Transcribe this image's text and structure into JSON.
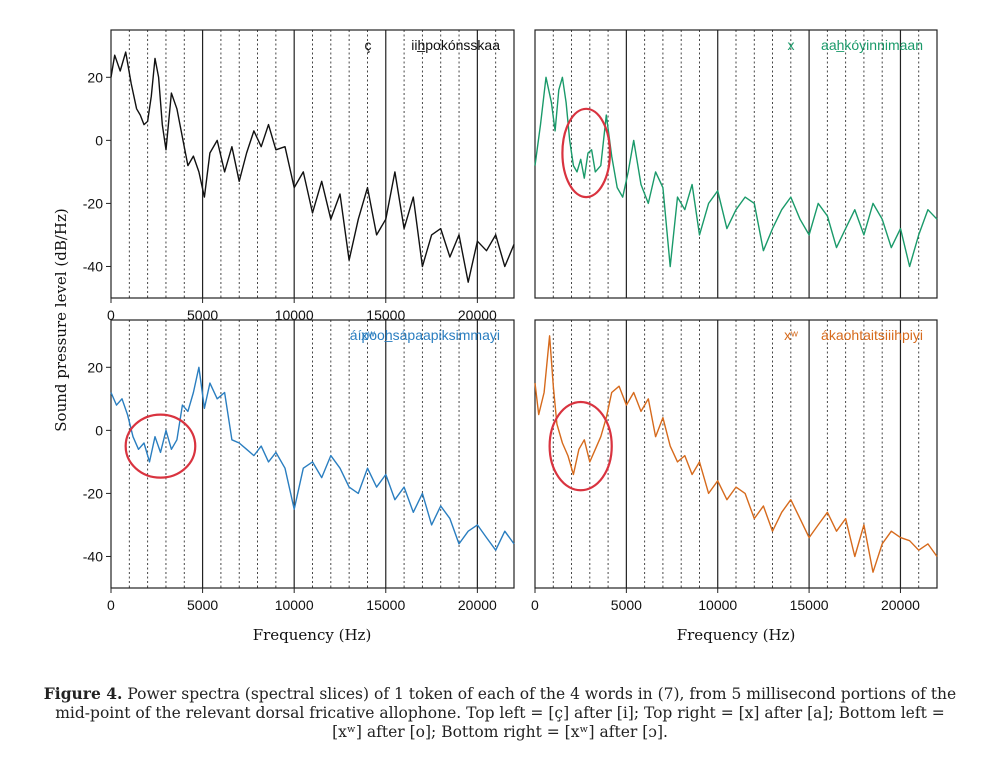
{
  "figure": {
    "ylabel": "Sound pressure level (dB/Hz)",
    "xlabel_left": "Frequency (Hz)",
    "xlabel_right": "Frequency (Hz)",
    "caption_label": "Figure 4.",
    "caption_text": "Power spectra (spectral slices) of 1 token of each of the 4 words in (7), from 5 millisecond portions of the mid-point of the relevant dorsal fricative allophone. Top left = [ç] after [i]; Top right = [x] after [a]; Bottom left = [xʷ] after [o]; Bottom right = [xʷ] after [ɔ]."
  },
  "chart_data": [
    {
      "type": "line",
      "panel": "top-left",
      "color": "#111111",
      "phone": "ç",
      "word": "iih̲pokónsskaa",
      "xlim": [
        0,
        22000
      ],
      "ylim": [
        -50,
        35
      ],
      "xticks": [
        "0",
        "5000",
        "10000",
        "15000",
        "20000"
      ],
      "yticks": [
        "20",
        "0",
        "-20",
        "-40"
      ],
      "solid_lines": [
        5000,
        10000,
        15000,
        20000
      ],
      "dotted_lines": [
        1000,
        2000,
        3000,
        4000,
        6000,
        7000,
        8000,
        9000,
        11000,
        12000,
        13000,
        14000,
        16000,
        17000,
        18000,
        19000,
        21000
      ],
      "circle": null,
      "series": [
        {
          "x": [
            0,
            200,
            500,
            800,
            1100,
            1400,
            1600,
            1800,
            2000,
            2200,
            2400,
            2600,
            2800,
            3000,
            3300,
            3600,
            3900,
            4200,
            4500,
            4800,
            5100,
            5400,
            5800,
            6200,
            6600,
            7000,
            7400,
            7800,
            8200,
            8600,
            9000,
            9500,
            10000,
            10500,
            11000,
            11500,
            12000,
            12500,
            13000,
            13500,
            14000,
            14500,
            15000,
            15500,
            16000,
            16500,
            17000,
            17500,
            18000,
            18500,
            19000,
            19500,
            20000,
            20500,
            21000,
            21500,
            22000
          ],
          "y": [
            20,
            27,
            22,
            28,
            18,
            10,
            8,
            5,
            6,
            14,
            26,
            20,
            5,
            -3,
            15,
            10,
            1,
            -8,
            -5,
            -10,
            -18,
            -4,
            0,
            -10,
            -2,
            -13,
            -4,
            3,
            -2,
            5,
            -3,
            -2,
            -15,
            -10,
            -23,
            -13,
            -25,
            -17,
            -38,
            -25,
            -15,
            -30,
            -25,
            -10,
            -28,
            -18,
            -40,
            -30,
            -28,
            -37,
            -30,
            -45,
            -32,
            -35,
            -30,
            -40,
            -33
          ]
        }
      ]
    },
    {
      "type": "line",
      "panel": "top-right",
      "color": "#1a9a6a",
      "phone": "x",
      "word": "aah̲kóyinnimaan",
      "xlim": [
        0,
        22000
      ],
      "ylim": [
        -50,
        35
      ],
      "xticks": [],
      "yticks": [],
      "solid_lines": [
        5000,
        10000,
        15000,
        20000
      ],
      "dotted_lines": [
        1000,
        2000,
        3000,
        4000,
        6000,
        7000,
        8000,
        9000,
        11000,
        12000,
        13000,
        14000,
        16000,
        17000,
        18000,
        19000,
        21000
      ],
      "circle": {
        "cx": 2800,
        "cy": -4,
        "rx": 1300,
        "ry": 14
      },
      "series": [
        {
          "x": [
            0,
            300,
            600,
            900,
            1100,
            1300,
            1500,
            1700,
            1900,
            2100,
            2300,
            2500,
            2700,
            2900,
            3100,
            3300,
            3600,
            3900,
            4200,
            4500,
            4800,
            5100,
            5400,
            5800,
            6200,
            6600,
            7000,
            7400,
            7800,
            8200,
            8600,
            9000,
            9500,
            10000,
            10500,
            11000,
            11500,
            12000,
            12500,
            13000,
            13500,
            14000,
            14500,
            15000,
            15500,
            16000,
            16500,
            17000,
            17500,
            18000,
            18500,
            19000,
            19500,
            20000,
            20500,
            21000,
            21500,
            22000
          ],
          "y": [
            -8,
            5,
            20,
            12,
            3,
            16,
            20,
            12,
            0,
            -8,
            -10,
            -6,
            -12,
            -4,
            -3,
            -10,
            -8,
            8,
            -5,
            -15,
            -18,
            -10,
            0,
            -14,
            -20,
            -10,
            -15,
            -40,
            -18,
            -22,
            -14,
            -30,
            -20,
            -16,
            -28,
            -22,
            -18,
            -20,
            -35,
            -28,
            -22,
            -18,
            -25,
            -30,
            -20,
            -24,
            -34,
            -28,
            -22,
            -30,
            -20,
            -25,
            -34,
            -28,
            -40,
            -30,
            -22,
            -25
          ]
        }
      ]
    },
    {
      "type": "line",
      "panel": "bottom-left",
      "color": "#2a7ec0",
      "phone": "xʷ",
      "word": "áípooh̲sápaapiksimmayi",
      "xlim": [
        0,
        22000
      ],
      "ylim": [
        -50,
        35
      ],
      "xticks": [
        "0",
        "5000",
        "10000",
        "15000",
        "20000"
      ],
      "yticks": [
        "20",
        "0",
        "-20",
        "-40"
      ],
      "solid_lines": [
        5000,
        10000,
        15000,
        20000
      ],
      "dotted_lines": [
        1000,
        2000,
        3000,
        4000,
        6000,
        7000,
        8000,
        9000,
        11000,
        12000,
        13000,
        14000,
        16000,
        17000,
        18000,
        19000,
        21000
      ],
      "circle": {
        "cx": 2700,
        "cy": -5,
        "rx": 1900,
        "ry": 10
      },
      "series": [
        {
          "x": [
            0,
            300,
            600,
            900,
            1200,
            1500,
            1800,
            2100,
            2400,
            2700,
            3000,
            3300,
            3600,
            3900,
            4200,
            4500,
            4800,
            5100,
            5400,
            5800,
            6200,
            6600,
            7000,
            7400,
            7800,
            8200,
            8600,
            9000,
            9500,
            10000,
            10500,
            11000,
            11500,
            12000,
            12500,
            13000,
            13500,
            14000,
            14500,
            15000,
            15500,
            16000,
            16500,
            17000,
            17500,
            18000,
            18500,
            19000,
            19500,
            20000,
            20500,
            21000,
            21500,
            22000
          ],
          "y": [
            12,
            8,
            10,
            5,
            -2,
            -6,
            -4,
            -10,
            -2,
            -7,
            0,
            -6,
            -3,
            8,
            6,
            12,
            20,
            7,
            15,
            10,
            12,
            -3,
            -4,
            -6,
            -8,
            -5,
            -10,
            -7,
            -12,
            -25,
            -12,
            -10,
            -15,
            -8,
            -12,
            -18,
            -20,
            -12,
            -18,
            -14,
            -22,
            -18,
            -26,
            -20,
            -30,
            -24,
            -28,
            -36,
            -32,
            -30,
            -34,
            -38,
            -32,
            -36
          ]
        }
      ]
    },
    {
      "type": "line",
      "panel": "bottom-right",
      "color": "#d66a1c",
      "phone": "xʷ",
      "word": "ákaohtaitsiiihpiyi",
      "xlim": [
        0,
        22000
      ],
      "ylim": [
        -50,
        35
      ],
      "xticks": [
        "0",
        "5000",
        "10000",
        "15000",
        "20000"
      ],
      "yticks": [],
      "solid_lines": [
        5000,
        10000,
        15000,
        20000
      ],
      "dotted_lines": [
        1000,
        2000,
        3000,
        4000,
        6000,
        7000,
        8000,
        9000,
        11000,
        12000,
        13000,
        14000,
        16000,
        17000,
        18000,
        19000,
        21000
      ],
      "circle": {
        "cx": 2500,
        "cy": -5,
        "rx": 1700,
        "ry": 14
      },
      "series": [
        {
          "x": [
            0,
            200,
            500,
            800,
            1000,
            1200,
            1500,
            1800,
            2100,
            2400,
            2700,
            3000,
            3300,
            3600,
            3900,
            4200,
            4600,
            5000,
            5400,
            5800,
            6200,
            6600,
            7000,
            7400,
            7800,
            8200,
            8600,
            9000,
            9500,
            10000,
            10500,
            11000,
            11500,
            12000,
            12500,
            13000,
            13500,
            14000,
            14500,
            15000,
            15500,
            16000,
            16500,
            17000,
            17500,
            18000,
            18500,
            19000,
            19500,
            20000,
            20500,
            21000,
            21500,
            22000
          ],
          "y": [
            15,
            5,
            12,
            30,
            14,
            2,
            -4,
            -8,
            -14,
            -6,
            -3,
            -10,
            -6,
            -2,
            4,
            12,
            14,
            8,
            12,
            6,
            10,
            -2,
            4,
            -5,
            -10,
            -8,
            -14,
            -10,
            -20,
            -16,
            -22,
            -18,
            -20,
            -28,
            -24,
            -32,
            -26,
            -22,
            -28,
            -34,
            -30,
            -26,
            -32,
            -28,
            -40,
            -30,
            -45,
            -36,
            -32,
            -34,
            -35,
            -38,
            -36,
            -40
          ]
        }
      ]
    }
  ]
}
